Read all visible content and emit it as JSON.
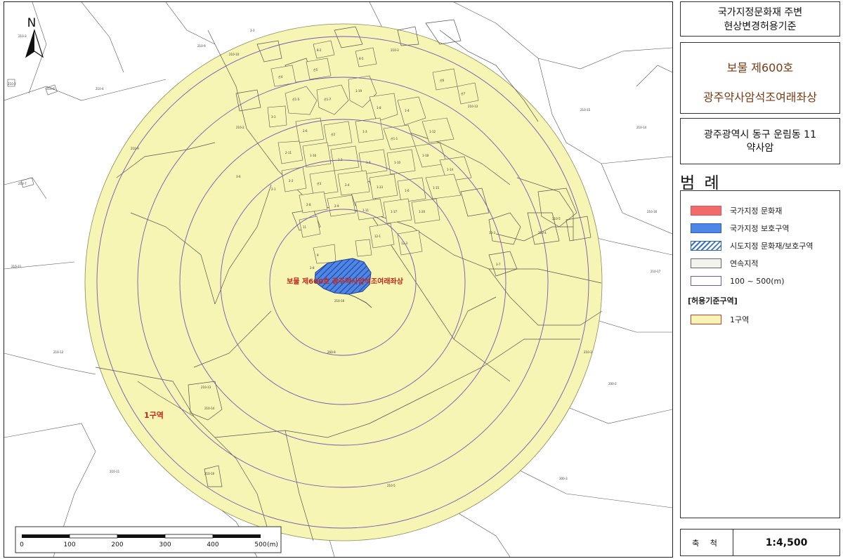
{
  "map": {
    "north_label": "N",
    "heritage_label": "보물 제600호 광주약사암석조여래좌상",
    "zone_label": "1구역",
    "scale_bar": {
      "ticks": [
        "0",
        "100",
        "200",
        "300",
        "400",
        "500"
      ],
      "unit": "(m)"
    },
    "buffer_rings_m": [
      100,
      200,
      300,
      400,
      500
    ],
    "colors": {
      "zone_fill": "#f7f5b4",
      "ring_stroke": "#7a55b5",
      "heritage_fill": "#4e86e6",
      "label_red": "#c0271b"
    }
  },
  "panel": {
    "title_line1": "국가지정문화재 주변",
    "title_line2": "현상변경허용기준",
    "heritage_line1": "보물 제600호",
    "heritage_line2": "광주약사암석조여래좌상",
    "address_line1": "광주광역시 동구 운림동 11",
    "address_line2": "약사암",
    "legend_title": "범 례",
    "legend": [
      {
        "label": "국가지정 문화재"
      },
      {
        "label": "국가지정 보호구역"
      },
      {
        "label": "시도지정 문화재/보호구역"
      },
      {
        "label": "연속지적"
      },
      {
        "label": "100 ~ 500(m)"
      }
    ],
    "zone_section_title": "[허용기준구역]",
    "zone_items": [
      {
        "label": "1구역"
      }
    ],
    "scale_label": "축 척",
    "scale_value": "1:4,500"
  }
}
